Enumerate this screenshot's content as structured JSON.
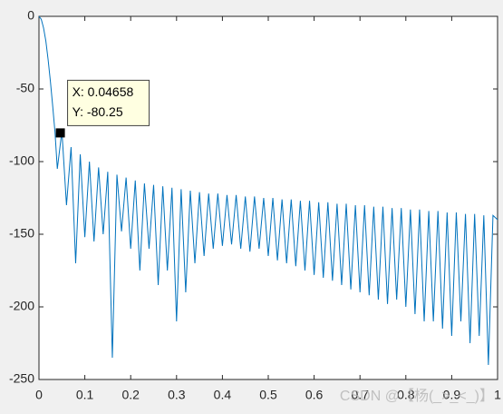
{
  "chart_data": {
    "type": "line",
    "x": [
      0,
      0.005,
      0.01,
      0.015,
      0.02,
      0.025,
      0.03,
      0.035,
      0.04,
      0.05,
      0.06,
      0.07,
      0.08,
      0.09,
      0.1,
      0.11,
      0.12,
      0.13,
      0.14,
      0.15,
      0.16,
      0.17,
      0.18,
      0.19,
      0.2,
      0.21,
      0.22,
      0.23,
      0.24,
      0.25,
      0.26,
      0.27,
      0.28,
      0.29,
      0.3,
      0.31,
      0.32,
      0.33,
      0.34,
      0.35,
      0.36,
      0.37,
      0.38,
      0.39,
      0.4,
      0.41,
      0.42,
      0.43,
      0.44,
      0.45,
      0.46,
      0.47,
      0.48,
      0.49,
      0.5,
      0.51,
      0.52,
      0.53,
      0.54,
      0.55,
      0.56,
      0.57,
      0.58,
      0.59,
      0.6,
      0.61,
      0.62,
      0.63,
      0.64,
      0.65,
      0.66,
      0.67,
      0.68,
      0.69,
      0.7,
      0.71,
      0.72,
      0.73,
      0.74,
      0.75,
      0.76,
      0.77,
      0.78,
      0.79,
      0.8,
      0.81,
      0.82,
      0.83,
      0.84,
      0.85,
      0.86,
      0.87,
      0.88,
      0.89,
      0.9,
      0.91,
      0.92,
      0.93,
      0.94,
      0.95,
      0.96,
      0.97,
      0.98,
      0.99,
      1.0
    ],
    "series": [
      {
        "color": "#0072bd",
        "values": [
          0,
          -2,
          -8,
          -17,
          -30,
          -45,
          -62,
          -80,
          -105,
          -79,
          -130,
          -90,
          -170,
          -95,
          -152,
          -100,
          -155,
          -104,
          -150,
          -107,
          -235,
          -109,
          -148,
          -111,
          -160,
          -113,
          -175,
          -115,
          -160,
          -116,
          -185,
          -117,
          -175,
          -118,
          -210,
          -119,
          -190,
          -120,
          -170,
          -121,
          -165,
          -122,
          -160,
          -122,
          -158,
          -123,
          -157,
          -123,
          -160,
          -124,
          -162,
          -124,
          -160,
          -125,
          -165,
          -125,
          -168,
          -126,
          -170,
          -126,
          -172,
          -127,
          -175,
          -127,
          -178,
          -128,
          -180,
          -128,
          -182,
          -129,
          -185,
          -129,
          -188,
          -130,
          -190,
          -130,
          -192,
          -131,
          -195,
          -131,
          -198,
          -132,
          -195,
          -132,
          -200,
          -133,
          -205,
          -133,
          -210,
          -134,
          -210,
          -134,
          -215,
          -135,
          -220,
          -135,
          -210,
          -136,
          -225,
          -136,
          -220,
          -137,
          -240,
          -137,
          -140
        ]
      }
    ],
    "xlim": [
      0,
      1
    ],
    "ylim": [
      -250,
      0
    ],
    "xticks": [
      0,
      0.1,
      0.2,
      0.3,
      0.4,
      0.5,
      0.6,
      0.7,
      0.8,
      0.9,
      1
    ],
    "yticks": [
      0,
      -50,
      -100,
      -150,
      -200,
      -250
    ],
    "datatip": {
      "x": 0.04658,
      "y": -80.25,
      "x_label": "X: 0.04658",
      "y_label": "Y: -80.25"
    }
  },
  "watermark": "CSDN @【杨(_>_<_)】"
}
